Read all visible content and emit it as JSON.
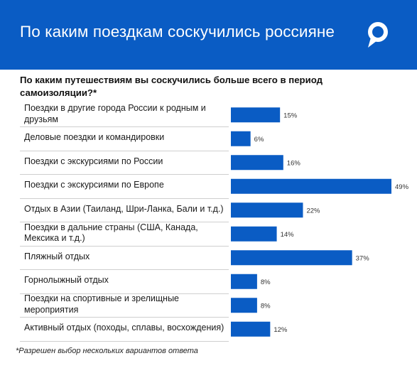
{
  "header": {
    "title": "По каким поездкам соскучились россияне",
    "logo_icon": "location-pin-logo-icon",
    "background": "#0a5cc4"
  },
  "chart_data": {
    "type": "bar",
    "orientation": "horizontal",
    "title": "По каким путешествиям вы соскучились больше всего в период самоизоляции?*",
    "categories": [
      "Поездки в другие города России к родным и друзьям",
      "Деловые поездки и командировки",
      "Поездки с экскурсиями по России",
      "Поездки с экскурсиями по Европе",
      "Отдых в Азии (Таиланд, Шри-Ланка, Бали и т.д.)",
      "Поездки в дальние страны (США, Канада, Мексика и т.д.)",
      "Пляжный отдых",
      "Горнолыжный отдых",
      "Поездки на спортивные и зрелищные мероприятия",
      "Активный отдых (походы, сплавы, восхождения)"
    ],
    "values": [
      15,
      6,
      16,
      49,
      22,
      14,
      37,
      8,
      8,
      12
    ],
    "value_labels": [
      "15%",
      "6%",
      "16%",
      "49%",
      "22%",
      "14%",
      "37%",
      "8%",
      "8%",
      "12%"
    ],
    "unit": "%",
    "bar_color": "#0a5cc4",
    "grid": false,
    "legend": "none"
  },
  "footnote": "*Разрешен выбор нескольких вариантов ответа"
}
